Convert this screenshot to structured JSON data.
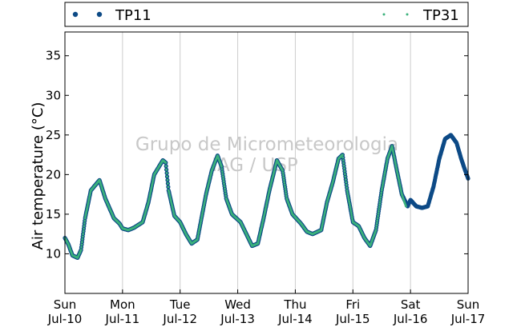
{
  "legend": [
    {
      "label": "TP11",
      "marker": "large dot",
      "color": "#0d4a86"
    },
    {
      "label": "TP31",
      "marker": "small dot",
      "color": "#3bb17c"
    }
  ],
  "watermark": [
    "Grupo de Micrometeorologia",
    "IAG / USP"
  ],
  "chart_data": {
    "type": "scatter",
    "ylabel": "Air temperature (°C)",
    "xlabel": "",
    "ylim": [
      5,
      38
    ],
    "yticks": [
      10,
      15,
      20,
      25,
      30,
      35
    ],
    "xlim": [
      0,
      7
    ],
    "xticks": [
      {
        "x": 0,
        "day": "Sun",
        "date": "Jul-10"
      },
      {
        "x": 1,
        "day": "Mon",
        "date": "Jul-11"
      },
      {
        "x": 2,
        "day": "Tue",
        "date": "Jul-12"
      },
      {
        "x": 3,
        "day": "Wed",
        "date": "Jul-13"
      },
      {
        "x": 4,
        "day": "Thu",
        "date": "Jul-14"
      },
      {
        "x": 5,
        "day": "Fri",
        "date": "Jul-15"
      },
      {
        "x": 6,
        "day": "Sat",
        "date": "Jul-16"
      },
      {
        "x": 7,
        "day": "Sun",
        "date": "Jul-17"
      }
    ],
    "grid": "vertical",
    "legend_position": "top",
    "series": [
      {
        "name": "TP11",
        "color": "#0d4a86",
        "points": [
          [
            0.0,
            12.0
          ],
          [
            0.06,
            11.2
          ],
          [
            0.13,
            9.8
          ],
          [
            0.22,
            9.5
          ],
          [
            0.28,
            10.5
          ],
          [
            0.35,
            14.5
          ],
          [
            0.45,
            18.0
          ],
          [
            0.6,
            19.3
          ],
          [
            0.7,
            17.0
          ],
          [
            0.85,
            14.5
          ],
          [
            0.95,
            13.8
          ],
          [
            1.0,
            13.2
          ],
          [
            1.1,
            13.0
          ],
          [
            1.2,
            13.3
          ],
          [
            1.35,
            14.0
          ],
          [
            1.45,
            16.5
          ],
          [
            1.55,
            20.0
          ],
          [
            1.7,
            21.8
          ],
          [
            1.75,
            21.5
          ],
          [
            1.8,
            18.0
          ],
          [
            1.9,
            14.8
          ],
          [
            2.0,
            14.0
          ],
          [
            2.1,
            12.5
          ],
          [
            2.2,
            11.3
          ],
          [
            2.3,
            11.8
          ],
          [
            2.45,
            17.5
          ],
          [
            2.55,
            20.5
          ],
          [
            2.65,
            22.4
          ],
          [
            2.72,
            21.0
          ],
          [
            2.8,
            17.0
          ],
          [
            2.9,
            15.0
          ],
          [
            3.05,
            14.0
          ],
          [
            3.15,
            12.5
          ],
          [
            3.25,
            11.0
          ],
          [
            3.35,
            11.3
          ],
          [
            3.45,
            14.5
          ],
          [
            3.55,
            18.0
          ],
          [
            3.68,
            21.8
          ],
          [
            3.78,
            20.5
          ],
          [
            3.85,
            17.0
          ],
          [
            3.95,
            15.0
          ],
          [
            4.1,
            13.8
          ],
          [
            4.2,
            12.8
          ],
          [
            4.3,
            12.5
          ],
          [
            4.45,
            13.0
          ],
          [
            4.55,
            16.5
          ],
          [
            4.65,
            19.0
          ],
          [
            4.75,
            22.0
          ],
          [
            4.82,
            22.5
          ],
          [
            4.9,
            18.0
          ],
          [
            5.0,
            14.0
          ],
          [
            5.1,
            13.5
          ],
          [
            5.2,
            12.0
          ],
          [
            5.3,
            11.0
          ],
          [
            5.4,
            13.0
          ],
          [
            5.5,
            18.0
          ],
          [
            5.6,
            22.0
          ],
          [
            5.68,
            23.6
          ],
          [
            5.75,
            21.0
          ],
          [
            5.85,
            17.5
          ],
          [
            5.95,
            16.0
          ],
          [
            6.0,
            16.8
          ],
          [
            6.1,
            16.0
          ],
          [
            6.2,
            15.8
          ],
          [
            6.3,
            16.0
          ],
          [
            6.4,
            18.5
          ],
          [
            6.5,
            22.0
          ],
          [
            6.6,
            24.5
          ],
          [
            6.7,
            25.0
          ],
          [
            6.8,
            24.0
          ],
          [
            6.88,
            22.0
          ],
          [
            6.95,
            20.5
          ],
          [
            7.0,
            19.5
          ]
        ]
      },
      {
        "name": "TP31",
        "color": "#3bb17c",
        "points": [
          [
            0.0,
            12.0
          ],
          [
            0.06,
            11.2
          ],
          [
            0.13,
            9.8
          ],
          [
            0.22,
            9.5
          ],
          [
            0.28,
            10.5
          ],
          [
            0.35,
            14.5
          ],
          [
            0.45,
            18.0
          ],
          [
            0.6,
            19.3
          ],
          [
            0.7,
            17.0
          ],
          [
            0.85,
            14.5
          ],
          [
            0.95,
            13.8
          ],
          [
            1.0,
            13.2
          ],
          [
            1.1,
            13.0
          ],
          [
            1.2,
            13.3
          ],
          [
            1.35,
            14.0
          ],
          [
            1.45,
            16.5
          ],
          [
            1.55,
            20.0
          ],
          [
            1.7,
            21.8
          ],
          [
            1.75,
            21.5
          ],
          [
            1.8,
            18.0
          ],
          [
            1.9,
            14.8
          ],
          [
            2.0,
            14.0
          ],
          [
            2.1,
            12.5
          ],
          [
            2.2,
            11.3
          ],
          [
            2.3,
            11.8
          ],
          [
            2.45,
            17.5
          ],
          [
            2.55,
            20.5
          ],
          [
            2.65,
            22.4
          ],
          [
            2.72,
            21.0
          ],
          [
            2.8,
            17.0
          ],
          [
            2.9,
            15.0
          ],
          [
            3.05,
            14.0
          ],
          [
            3.15,
            12.5
          ],
          [
            3.25,
            11.0
          ],
          [
            3.35,
            11.3
          ],
          [
            3.45,
            14.5
          ],
          [
            3.55,
            18.0
          ],
          [
            3.68,
            21.8
          ],
          [
            3.78,
            20.5
          ],
          [
            3.85,
            17.0
          ],
          [
            3.95,
            15.0
          ],
          [
            4.1,
            13.8
          ],
          [
            4.2,
            12.8
          ],
          [
            4.3,
            12.5
          ],
          [
            4.45,
            13.0
          ],
          [
            4.55,
            16.5
          ],
          [
            4.65,
            19.0
          ],
          [
            4.75,
            22.0
          ],
          [
            4.82,
            22.5
          ],
          [
            4.9,
            18.0
          ],
          [
            5.0,
            14.0
          ],
          [
            5.1,
            13.5
          ],
          [
            5.2,
            12.0
          ],
          [
            5.3,
            11.0
          ],
          [
            5.4,
            13.0
          ],
          [
            5.5,
            18.0
          ],
          [
            5.6,
            22.0
          ],
          [
            5.68,
            23.6
          ],
          [
            5.75,
            21.0
          ],
          [
            5.85,
            17.5
          ],
          [
            5.92,
            16.0
          ]
        ]
      }
    ]
  }
}
